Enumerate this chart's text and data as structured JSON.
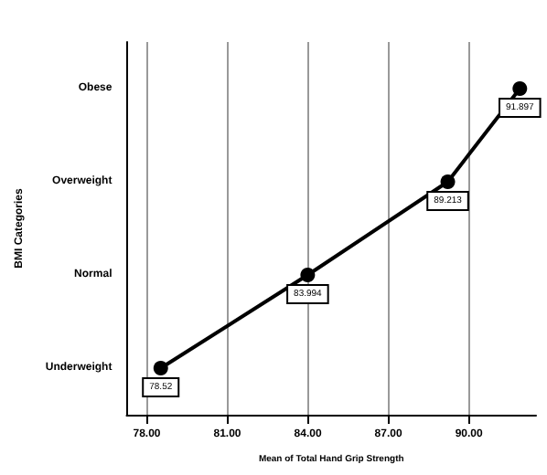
{
  "chart_data": {
    "type": "line",
    "orientation": "horizontal",
    "xlabel": "Mean of Total Hand Grip Strength",
    "ylabel": "BMI Categories",
    "categories": [
      "Obese",
      "Overweight",
      "Normal",
      "Underweight"
    ],
    "values": [
      91.897,
      89.213,
      83.994,
      78.52
    ],
    "value_labels": [
      "91.897",
      "89.213",
      "83.994",
      "78.52"
    ],
    "color": "#000000",
    "marker": "circle",
    "line_style": "solid",
    "xlim": [
      77.25,
      92.5
    ],
    "xticks": [
      {
        "value": 78,
        "label": "78.00"
      },
      {
        "value": 81,
        "label": "81.00"
      },
      {
        "value": 84,
        "label": "84.00"
      },
      {
        "value": 87,
        "label": "87.00"
      },
      {
        "value": 90,
        "label": "90.00"
      }
    ],
    "grid": "x"
  }
}
